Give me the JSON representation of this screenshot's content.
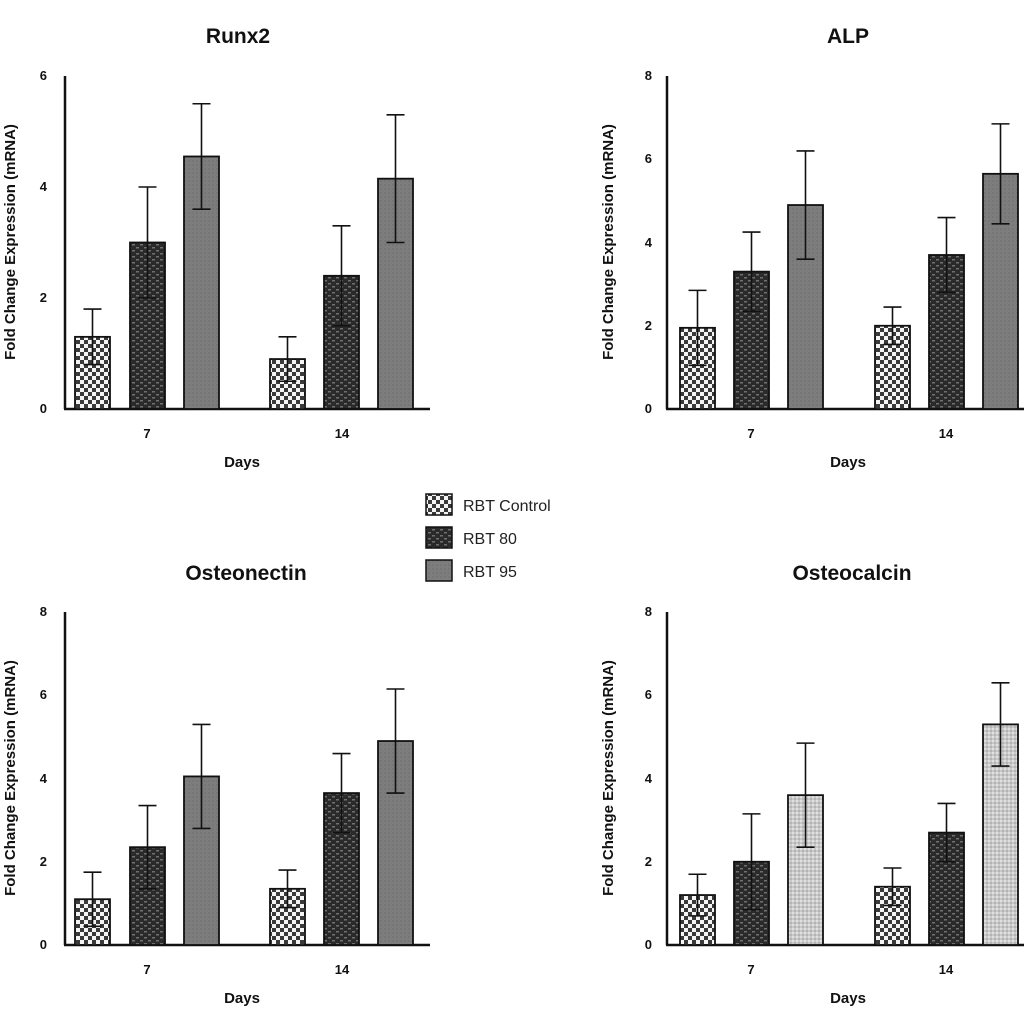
{
  "legend": {
    "items": [
      {
        "label": "RBT Control",
        "pattern": "checker"
      },
      {
        "label": "RBT 80",
        "pattern": "brick"
      },
      {
        "label": "RBT 95",
        "pattern": "gray"
      }
    ]
  },
  "chart_data": [
    {
      "type": "bar",
      "title": "Runx2",
      "xlabel": "Days",
      "ylabel": "Fold Change Expression (mRNA)",
      "categories": [
        "7",
        "14"
      ],
      "ylim": [
        0,
        6
      ],
      "yticks": [
        "0",
        "2",
        "4",
        "6"
      ],
      "series": [
        {
          "name": "RBT Control",
          "values": [
            1.3,
            0.9
          ],
          "errors": [
            0.5,
            0.4
          ]
        },
        {
          "name": "RBT 80",
          "values": [
            3.0,
            2.4
          ],
          "errors": [
            1.0,
            0.9
          ]
        },
        {
          "name": "RBT 95",
          "values": [
            4.55,
            4.15
          ],
          "errors": [
            0.95,
            1.15
          ]
        }
      ]
    },
    {
      "type": "bar",
      "title": "ALP",
      "xlabel": "Days",
      "ylabel": "Fold Change Expression (mRNA)",
      "categories": [
        "7",
        "14"
      ],
      "ylim": [
        0,
        8
      ],
      "yticks": [
        "0",
        "2",
        "4",
        "6",
        "8"
      ],
      "series": [
        {
          "name": "RBT Control",
          "values": [
            1.95,
            2.0
          ],
          "errors": [
            0.9,
            0.45
          ]
        },
        {
          "name": "RBT 80",
          "values": [
            3.3,
            3.7
          ],
          "errors": [
            0.95,
            0.9
          ]
        },
        {
          "name": "RBT 95",
          "values": [
            4.9,
            5.65
          ],
          "errors": [
            1.3,
            1.2
          ]
        }
      ]
    },
    {
      "type": "bar",
      "title": "Osteonectin",
      "xlabel": "Days",
      "ylabel": "Fold Change Expression (mRNA)",
      "categories": [
        "7",
        "14"
      ],
      "ylim": [
        0,
        8
      ],
      "yticks": [
        "0",
        "2",
        "4",
        "6",
        "8"
      ],
      "series": [
        {
          "name": "RBT Control",
          "values": [
            1.1,
            1.35
          ],
          "errors": [
            0.65,
            0.45
          ]
        },
        {
          "name": "RBT 80",
          "values": [
            2.35,
            3.65
          ],
          "errors": [
            1.0,
            0.95
          ]
        },
        {
          "name": "RBT 95",
          "values": [
            4.05,
            4.9
          ],
          "errors": [
            1.25,
            1.25
          ]
        }
      ]
    },
    {
      "type": "bar",
      "title": "Osteocalcin",
      "xlabel": "Days",
      "ylabel": "Fold Change Expression (mRNA)",
      "categories": [
        "7",
        "14"
      ],
      "ylim": [
        0,
        8
      ],
      "yticks": [
        "0",
        "2",
        "4",
        "6",
        "8"
      ],
      "series": [
        {
          "name": "RBT Control",
          "values": [
            1.2,
            1.4
          ],
          "errors": [
            0.5,
            0.45
          ]
        },
        {
          "name": "RBT 80",
          "values": [
            2.0,
            2.7
          ],
          "errors": [
            1.15,
            0.7
          ]
        },
        {
          "name": "RBT 95",
          "values": [
            3.6,
            5.3
          ],
          "errors": [
            1.25,
            1.0
          ]
        }
      ]
    }
  ]
}
